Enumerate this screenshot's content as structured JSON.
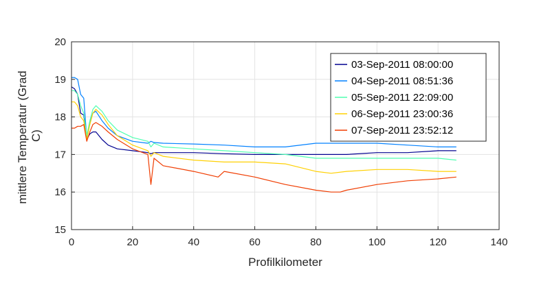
{
  "chart_data": {
    "type": "line",
    "xlabel": "Profilkilometer",
    "ylabel": "mittlere Temperatur (Grad C)",
    "ylabel_lines": [
      "mittlere Temperatur (Grad",
      "C)"
    ],
    "xlim": [
      0,
      140
    ],
    "ylim": [
      15,
      20
    ],
    "xticks": [
      0,
      20,
      40,
      60,
      80,
      100,
      120,
      140
    ],
    "yticks": [
      15,
      16,
      17,
      18,
      19,
      20
    ],
    "grid": true,
    "legend_position": "top-right",
    "series": [
      {
        "name": "03-Sep-2011 08:00:00",
        "color": "#00008f",
        "x": [
          0,
          1,
          2,
          3,
          4,
          5,
          6,
          7,
          8,
          10,
          12,
          15,
          20,
          25,
          26,
          27,
          30,
          40,
          50,
          60,
          70,
          80,
          85,
          90,
          100,
          110,
          120,
          126
        ],
        "y": [
          18.8,
          18.75,
          18.6,
          18.1,
          18.05,
          17.4,
          17.55,
          17.6,
          17.6,
          17.4,
          17.25,
          17.15,
          17.1,
          17.05,
          17.02,
          17.05,
          17.05,
          17.05,
          17.02,
          17.0,
          17.0,
          17.0,
          17.0,
          17.0,
          17.05,
          17.05,
          17.1,
          17.1
        ]
      },
      {
        "name": "04-Sep-2011 08:51:36",
        "color": "#0080ff",
        "x": [
          0,
          1,
          2,
          3,
          4,
          5,
          6,
          7,
          8,
          10,
          12,
          15,
          20,
          25,
          26,
          27,
          30,
          40,
          50,
          60,
          70,
          80,
          85,
          90,
          100,
          110,
          120,
          126
        ],
        "y": [
          19.05,
          19.05,
          19.0,
          18.6,
          18.5,
          17.45,
          17.85,
          18.1,
          18.15,
          17.9,
          17.7,
          17.5,
          17.35,
          17.3,
          17.35,
          17.32,
          17.3,
          17.28,
          17.25,
          17.2,
          17.2,
          17.3,
          17.3,
          17.3,
          17.3,
          17.25,
          17.2,
          17.2
        ]
      },
      {
        "name": "05-Sep-2011 22:09:00",
        "color": "#4effb1",
        "x": [
          0,
          1,
          2,
          3,
          4,
          5,
          6,
          7,
          8,
          10,
          12,
          15,
          20,
          25,
          26,
          27,
          30,
          40,
          50,
          60,
          70,
          80,
          85,
          90,
          100,
          110,
          120,
          126
        ],
        "y": [
          18.7,
          18.7,
          18.6,
          18.3,
          18.1,
          17.5,
          17.9,
          18.2,
          18.3,
          18.15,
          17.9,
          17.65,
          17.45,
          17.35,
          17.2,
          17.3,
          17.2,
          17.15,
          17.1,
          17.05,
          17.0,
          16.9,
          16.9,
          16.9,
          16.9,
          16.9,
          16.9,
          16.85
        ]
      },
      {
        "name": "06-Sep-2011 23:00:36",
        "color": "#ffd000",
        "x": [
          0,
          1,
          2,
          3,
          4,
          5,
          6,
          7,
          8,
          10,
          12,
          15,
          20,
          25,
          26,
          27,
          30,
          40,
          50,
          60,
          70,
          80,
          85,
          90,
          100,
          110,
          120,
          126
        ],
        "y": [
          18.4,
          18.4,
          18.3,
          18.0,
          17.9,
          17.4,
          17.8,
          18.1,
          18.2,
          18.05,
          17.8,
          17.5,
          17.25,
          17.1,
          16.95,
          17.05,
          16.95,
          16.85,
          16.8,
          16.8,
          16.75,
          16.55,
          16.5,
          16.55,
          16.6,
          16.6,
          16.55,
          16.55
        ]
      },
      {
        "name": "07-Sep-2011 23:52:12",
        "color": "#f03c00",
        "x": [
          0,
          1,
          2,
          3,
          4,
          5,
          6,
          7,
          8,
          10,
          12,
          15,
          20,
          25,
          26,
          27,
          30,
          40,
          48,
          50,
          60,
          70,
          80,
          85,
          88,
          90,
          100,
          110,
          120,
          126
        ],
        "y": [
          17.7,
          17.7,
          17.75,
          17.75,
          17.8,
          17.35,
          17.6,
          17.8,
          17.85,
          17.75,
          17.6,
          17.4,
          17.15,
          17.0,
          16.2,
          16.9,
          16.7,
          16.55,
          16.4,
          16.55,
          16.4,
          16.2,
          16.05,
          16.0,
          16.0,
          16.05,
          16.2,
          16.3,
          16.35,
          16.4
        ]
      }
    ]
  }
}
